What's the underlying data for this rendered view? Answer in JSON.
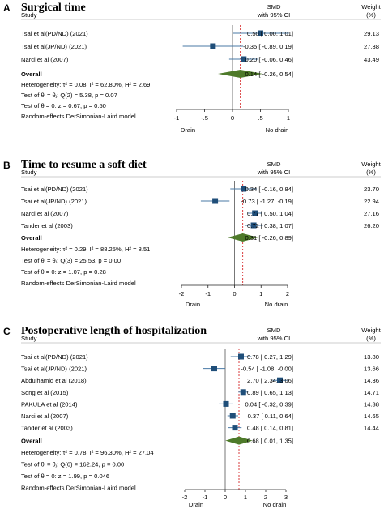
{
  "chart_data": [
    {
      "type": "forest",
      "panel": "A",
      "title": "Surgical time",
      "study_header": "Study",
      "effect_header": [
        "SMD",
        "with 95% CI"
      ],
      "weight_header": [
        "Weight",
        "(%)"
      ],
      "studies": [
        {
          "name": "Tsai et al(PD/ND) (2021)",
          "smd": 0.5,
          "ci": [
            0.0,
            1.01
          ],
          "weight": "29.13",
          "ci_text": "0.50 [   0.00,  1.01]"
        },
        {
          "name": "Tsai et al(JP/ND) (2021)",
          "smd": -0.35,
          "ci": [
            -0.89,
            0.19
          ],
          "weight": "27.38",
          "ci_text": "-0.35 [ -0.89,  0.19]"
        },
        {
          "name": "Narci et al (2007)",
          "smd": 0.2,
          "ci": [
            -0.06,
            0.46
          ],
          "weight": "43.49",
          "ci_text": "0.20 [ -0.06,  0.46]"
        }
      ],
      "overall": {
        "label": "Overall",
        "smd": 0.14,
        "ci": [
          -0.26,
          0.54
        ],
        "ci_text": "0.14 [ -0.26,  0.54]"
      },
      "stats": [
        "Heterogeneity: τ² = 0.08, I² = 62.80%, H² = 2.69",
        "Test of θᵢ = θⱼ: Q(2) = 5.38, p = 0.07",
        "Test of θ = 0: z = 0.67, p = 0.50"
      ],
      "model": "Random-effects DerSimonian-Laird model",
      "xlim": [
        -1,
        1
      ],
      "xticks": [
        -1,
        -0.5,
        0,
        0.5,
        1
      ],
      "xtick_labels": [
        "-1",
        "-.5",
        "0",
        ".5",
        "1"
      ],
      "xlabels": [
        "Drain",
        "No drain"
      ]
    },
    {
      "type": "forest",
      "panel": "B",
      "title": "Time to resume a soft diet",
      "study_header": "Study",
      "effect_header": [
        "SMD",
        "with 95% CI"
      ],
      "weight_header": [
        "Weight",
        "(%)"
      ],
      "studies": [
        {
          "name": "Tsai  et al(PD/ND) (2021)",
          "smd": 0.34,
          "ci": [
            -0.16,
            0.84
          ],
          "weight": "23.70",
          "ci_text": "0.34 [ -0.16,  0.84]"
        },
        {
          "name": "Tsai  et al(JP/ND) (2021)",
          "smd": -0.73,
          "ci": [
            -1.27,
            -0.19
          ],
          "weight": "22.94",
          "ci_text": "-0.73 [ -1.27, -0.19]"
        },
        {
          "name": "Narci et al (2007)",
          "smd": 0.77,
          "ci": [
            0.5,
            1.04
          ],
          "weight": "27.16",
          "ci_text": "0.77 [   0.50,  1.04]"
        },
        {
          "name": "Tander et al (2003)",
          "smd": 0.72,
          "ci": [
            0.38,
            1.07
          ],
          "weight": "26.20",
          "ci_text": "0.72 [   0.38,  1.07]"
        }
      ],
      "overall": {
        "label": "Overall",
        "smd": 0.31,
        "ci": [
          -0.26,
          0.89
        ],
        "ci_text": "0.31 [ -0.26,  0.89]"
      },
      "stats": [
        "Heterogeneity: τ² = 0.29, I² = 88.25%, H² = 8.51",
        "Test of θᵢ = θⱼ: Q(3) = 25.53, p = 0.00",
        "Test of θ = 0: z = 1.07, p = 0.28"
      ],
      "model": "Random-effects DerSimonian-Laird model",
      "xlim": [
        -2,
        2
      ],
      "xticks": [
        -2,
        -1,
        0,
        1,
        2
      ],
      "xtick_labels": [
        "-2",
        "-1",
        "0",
        "1",
        "2"
      ],
      "xlabels": [
        "Drain",
        "No drain"
      ]
    },
    {
      "type": "forest",
      "panel": "C",
      "title": "Postoperative length of hospitalization",
      "study_header": "Study",
      "effect_header": [
        "SMD",
        "with 95% CI"
      ],
      "weight_header": [
        "Weight",
        "(%)"
      ],
      "studies": [
        {
          "name": "Tsai et al(PD/ND) (2021)",
          "smd": 0.78,
          "ci": [
            0.27,
            1.29
          ],
          "weight": "13.80",
          "ci_text": "0.78 [   0.27,  1.29]"
        },
        {
          "name": "Tsai et al(JP/ND) (2021)",
          "smd": -0.54,
          "ci": [
            -1.08,
            -0.0
          ],
          "weight": "13.66",
          "ci_text": "-0.54 [ -1.08, -0.00]"
        },
        {
          "name": "Abdulhamid et al (2018)",
          "smd": 2.7,
          "ci": [
            2.34,
            3.06
          ],
          "weight": "14.36",
          "ci_text": "2.70 [   2.34,  3.06]"
        },
        {
          "name": "Song et al (2015)",
          "smd": 0.89,
          "ci": [
            0.65,
            1.13
          ],
          "weight": "14.71",
          "ci_text": "0.89 [   0.65,  1.13]"
        },
        {
          "name": "PAKULA et al (2014)",
          "smd": 0.04,
          "ci": [
            -0.32,
            0.39
          ],
          "weight": "14.38",
          "ci_text": "0.04 [ -0.32,  0.39]"
        },
        {
          "name": "Narci et al (2007)",
          "smd": 0.37,
          "ci": [
            0.11,
            0.64
          ],
          "weight": "14.65",
          "ci_text": "0.37 [   0.11,  0.64]"
        },
        {
          "name": "Tander et al (2003)",
          "smd": 0.48,
          "ci": [
            0.14,
            0.81
          ],
          "weight": "14.44",
          "ci_text": "0.48 [   0.14,  0.81]"
        }
      ],
      "overall": {
        "label": "Overall",
        "smd": 0.68,
        "ci": [
          0.01,
          1.35
        ],
        "ci_text": "0.68 [   0.01,  1.35]"
      },
      "stats": [
        "Heterogeneity: τ² = 0.78, I² = 96.30%, H² = 27.04",
        "Test of θᵢ = θⱼ: Q(6) = 162.24, p = 0.00",
        "Test of θ = 0: z = 1.99, p = 0.046"
      ],
      "model": "Random-effects DerSimonian-Laird model",
      "xlim": [
        -2,
        3
      ],
      "xticks": [
        -2,
        -1,
        0,
        1,
        2,
        3
      ],
      "xtick_labels": [
        "-2",
        "-1",
        "0",
        "1",
        "2",
        "3"
      ],
      "xlabels": [
        "Drain",
        "No drain"
      ]
    }
  ],
  "colors": {
    "marker": "#1f4e79",
    "ci_line": "#4a7aa6",
    "diamond": "#4e7a2a",
    "null_line": "#555555",
    "overall_line": "#d62728",
    "rule": "#cccccc"
  }
}
